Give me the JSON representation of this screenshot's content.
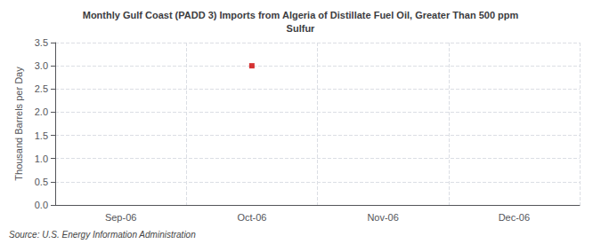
{
  "chart_data": {
    "type": "scatter",
    "title": "Monthly Gulf Coast (PADD 3) Imports from Algeria of Distillate Fuel Oil, Greater Than 500 ppm\nSulfur",
    "ylabel": "Thousand Barrels per Day",
    "annotation": "Source: U.S. Energy Information Administration",
    "categories": [
      "Sep-06",
      "Oct-06",
      "Nov-06",
      "Dec-06"
    ],
    "values": [
      null,
      3.0,
      null,
      null
    ],
    "color": "#cc0000",
    "marker": "square",
    "ylim": [
      0.0,
      3.5
    ],
    "yticks": [
      {
        "value": 0.0,
        "label": "0.0"
      },
      0.5,
      {
        "value": 1.0,
        "label": "1.0"
      },
      1.5,
      {
        "value": 2.0,
        "label": "2.0"
      },
      2.5,
      {
        "value": 3.0,
        "label": "3.0"
      },
      3.5
    ],
    "grid": true
  }
}
